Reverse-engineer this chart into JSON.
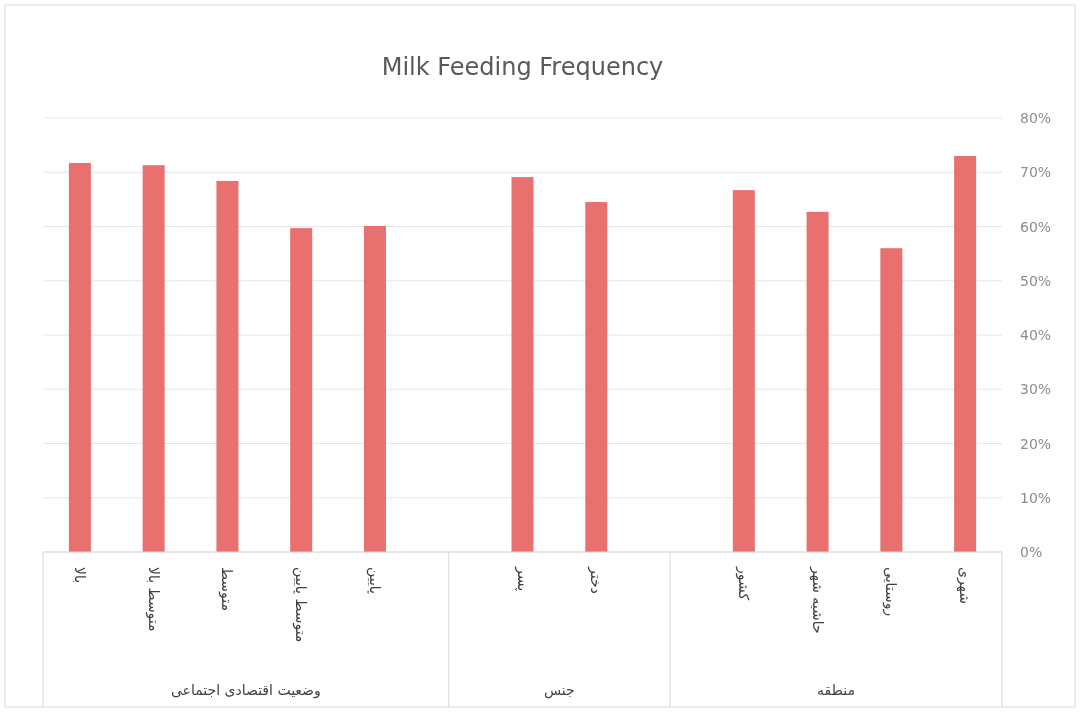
{
  "chart_data": {
    "type": "bar",
    "title": "Milk Feeding Frequency",
    "categories": [
      "بالا",
      "متوسط بالا",
      "متوسط",
      "متوسط پایین",
      "پایین",
      null,
      "پسر",
      "دختر",
      null,
      "کشور",
      "حاشیه شهر",
      "روستایی",
      "شهری"
    ],
    "values": [
      71.7,
      71.3,
      68.4,
      59.7,
      60.1,
      null,
      69.1,
      64.5,
      null,
      66.7,
      62.7,
      56.0,
      73.0
    ],
    "color": "#e8706f",
    "ylim": [
      0,
      80
    ],
    "yticks": [
      {
        "value": 0,
        "label": "0%"
      },
      {
        "value": 10,
        "label": "10%"
      },
      {
        "value": 20,
        "label": "20%"
      },
      {
        "value": 30,
        "label": "30%"
      },
      {
        "value": 40,
        "label": "40%"
      },
      {
        "value": 50,
        "label": "50%"
      },
      {
        "value": 60,
        "label": "60%"
      },
      {
        "value": 70,
        "label": "70%"
      },
      {
        "value": 80,
        "label": "80%"
      }
    ],
    "grid": "y",
    "annotations": [
      "وضعیت اقتصادی اجتماعی",
      "جنس",
      "منطقه"
    ]
  }
}
